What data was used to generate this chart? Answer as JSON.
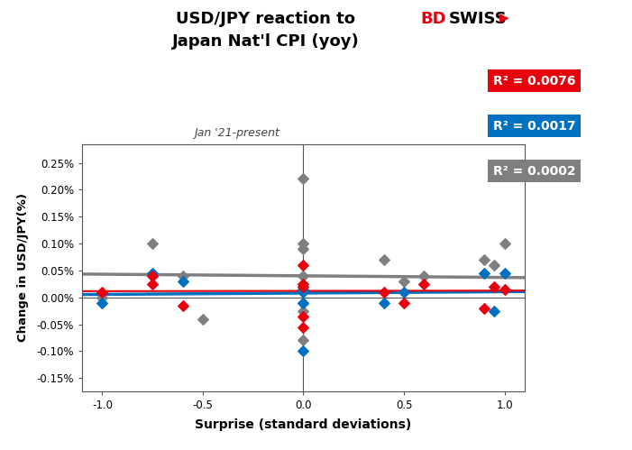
{
  "title_line1": "USD/JPY reaction to",
  "title_line2": "Japan Nat'l CPI (yoy)",
  "subtitle": "Jan '21-present",
  "xlabel": "Surprise (standard deviations)",
  "ylabel": "Change in USD/JPY(%)",
  "xlim": [
    -1.1,
    1.1
  ],
  "ylim": [
    -0.00175,
    0.00285
  ],
  "r2_5min": "R² = 0.0076",
  "r2_30min": "R² = 0.0017",
  "r2_1hr": "R² = 0.0002",
  "color_5min": "#e8000d",
  "color_30min": "#0070c0",
  "color_1hr": "#7f7f7f",
  "color_r2_5min_bg": "#e8000d",
  "color_r2_30min_bg": "#0070c0",
  "color_r2_1hr_bg": "#7f7f7f",
  "scatter_5min_x": [
    -1.0,
    -0.75,
    -0.75,
    -0.6,
    0.0,
    0.0,
    0.0,
    0.0,
    0.0,
    0.4,
    0.5,
    0.6,
    0.9,
    0.95,
    1.0
  ],
  "scatter_5min_y": [
    0.0001,
    0.00025,
    0.0004,
    -0.00015,
    0.0006,
    0.00025,
    0.0002,
    -0.00035,
    -0.00055,
    0.0001,
    -0.0001,
    0.00025,
    -0.0002,
    0.0002,
    0.00015
  ],
  "scatter_30min_x": [
    -1.0,
    -0.75,
    -0.6,
    0.0,
    0.0,
    0.0,
    0.0,
    0.4,
    0.5,
    0.9,
    0.95,
    1.0
  ],
  "scatter_30min_y": [
    -0.0001,
    0.00045,
    0.0003,
    0.00015,
    0.0001,
    -0.0001,
    -0.001,
    -0.0001,
    0.0001,
    0.00045,
    -0.00025,
    0.00045
  ],
  "scatter_1hr_x": [
    -1.0,
    -0.75,
    -0.6,
    -0.5,
    0.0,
    0.0,
    0.0,
    0.0,
    0.0,
    0.0,
    0.0,
    0.4,
    0.5,
    0.6,
    0.9,
    0.95,
    1.0
  ],
  "scatter_1hr_y": [
    0.0,
    0.001,
    0.0004,
    -0.0004,
    0.0022,
    0.001,
    0.0009,
    0.0004,
    -0.0001,
    -0.00025,
    -0.0008,
    0.0007,
    0.0003,
    0.0004,
    0.0007,
    0.0006,
    0.001
  ],
  "trendline_5min_slope": 5e-06,
  "trendline_5min_intercept": 0.00012,
  "trendline_30min_slope": 2.5e-05,
  "trendline_30min_intercept": 8e-05,
  "trendline_1hr_slope": -3e-05,
  "trendline_1hr_intercept": 0.0004,
  "ytick_vals": [
    -0.0015,
    -0.001,
    -0.0005,
    0.0,
    0.0005,
    0.001,
    0.0015,
    0.002,
    0.0025
  ],
  "ytick_labels": [
    "-0.15%",
    "-0.10%",
    "-0.05%",
    "0.00%",
    "0.05%",
    "0.10%",
    "0.15%",
    "0.20%",
    "0.25%"
  ],
  "xtick_vals": [
    -1.0,
    -0.5,
    0.0,
    0.5,
    1.0
  ],
  "xtick_labels": [
    "-1.0",
    "-0.5",
    "0.0",
    "0.5",
    "1.0"
  ]
}
